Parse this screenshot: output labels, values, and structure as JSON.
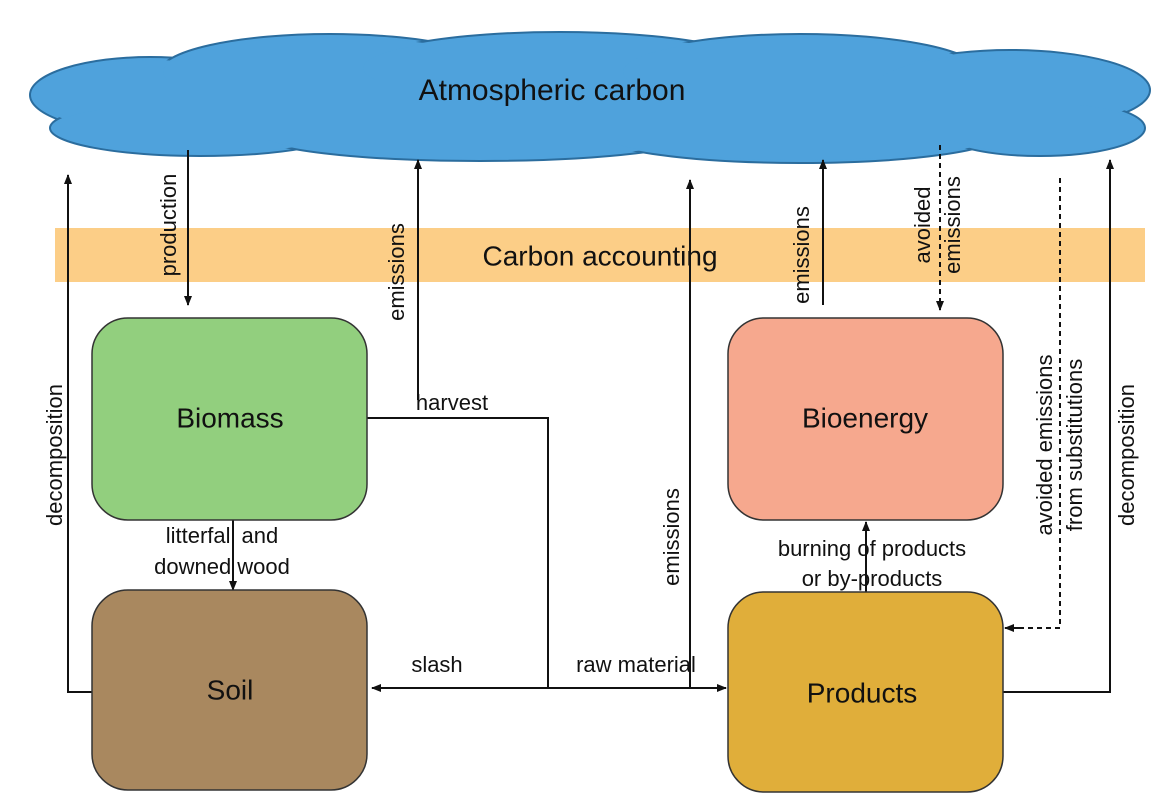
{
  "cloud": {
    "label": "Atmospheric carbon"
  },
  "band": {
    "label": "Carbon accounting"
  },
  "nodes": [
    {
      "label": "Biomass"
    },
    {
      "label": "Bioenergy"
    },
    {
      "label": "Soil"
    },
    {
      "label": "Products"
    }
  ],
  "flows": [
    {
      "lines": [
        "production"
      ]
    },
    {
      "lines": [
        "emissions"
      ]
    },
    {
      "lines": [
        "harvest"
      ]
    },
    {
      "lines": [
        "litterfall and",
        "downed wood"
      ]
    },
    {
      "lines": [
        "decomposition"
      ]
    },
    {
      "lines": [
        "slash"
      ]
    },
    {
      "lines": [
        "raw material"
      ]
    },
    {
      "lines": [
        "emissions"
      ]
    },
    {
      "lines": [
        "emissions"
      ]
    },
    {
      "lines": [
        "avoided",
        "emissions"
      ]
    },
    {
      "lines": [
        "burning of products",
        "or by-products"
      ]
    },
    {
      "lines": [
        "avoided emissions",
        "from substitutions"
      ]
    },
    {
      "lines": [
        "decomposition"
      ]
    }
  ]
}
